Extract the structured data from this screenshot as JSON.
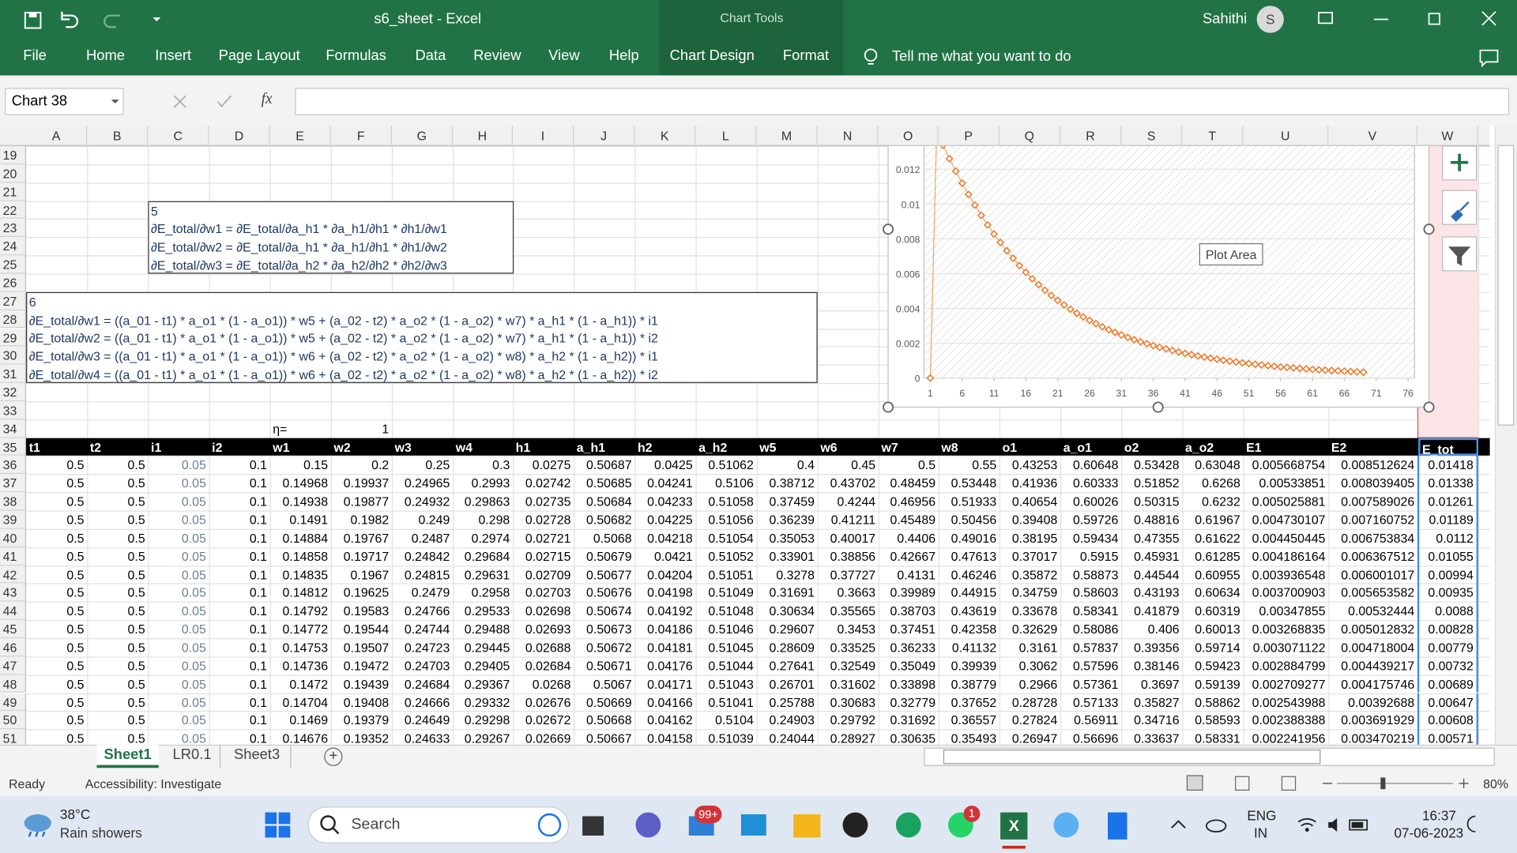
{
  "title_bar": {
    "file_title": "s6_sheet  -  Excel",
    "chart_tools": "Chart Tools",
    "user": "Sahithi",
    "avatar": "S"
  },
  "ribbon": {
    "tabs": [
      "File",
      "Home",
      "Insert",
      "Page Layout",
      "Formulas",
      "Data",
      "Review",
      "View",
      "Help",
      "Chart Design",
      "Format"
    ],
    "tell_me": "Tell me what you want to do"
  },
  "formula_bar": {
    "name_box": "Chart 38",
    "fx": "fx"
  },
  "columns": [
    "A",
    "B",
    "C",
    "D",
    "E",
    "F",
    "G",
    "H",
    "I",
    "J",
    "K",
    "L",
    "M",
    "N",
    "O",
    "P",
    "Q",
    "R",
    "S",
    "T",
    "U",
    "V",
    "W"
  ],
  "rows": [
    "19",
    "20",
    "21",
    "22",
    "23",
    "24",
    "25",
    "26",
    "27",
    "28",
    "29",
    "30",
    "31",
    "32",
    "33",
    "34",
    "35",
    "36",
    "37",
    "38",
    "39",
    "40",
    "41",
    "42",
    "43",
    "44",
    "45",
    "46",
    "47",
    "48",
    "49",
    "50",
    "51"
  ],
  "text_box_1": {
    "lines": [
      "5",
      "∂E_total/∂w1 = ∂E_total/∂a_h1 * ∂a_h1/∂h1 * ∂h1/∂w1",
      "∂E_total/∂w2 = ∂E_total/∂a_h1 * ∂a_h1/∂h1 * ∂h1/∂w2",
      "∂E_total/∂w3 = ∂E_total/∂a_h2 * ∂a_h2/∂h2 * ∂h2/∂w3"
    ]
  },
  "text_box_2": {
    "lines": [
      "6",
      "∂E_total/∂w1 = ((a_01 - t1) * a_o1 * (1 - a_o1)) * w5 +  (a_02 - t2) * a_o2 * (1 - a_o2) * w7) * a_h1 * (1 - a_h1)) * i1",
      "∂E_total/∂w2 = ((a_01 - t1) * a_o1 * (1 - a_o1)) * w5 +  (a_02 - t2) * a_o2 * (1 - a_o2) * w7) * a_h1 * (1 - a_h1)) * i2",
      "∂E_total/∂w3 = ((a_01 - t1) * a_o1 * (1 - a_o1)) * w6 +  (a_02 - t2) * a_o2 * (1 - a_o2) * w8) * a_h2 * (1 - a_h2)) * i1",
      "∂E_total/∂w4 = ((a_01 - t1) * a_o1 * (1 - a_o1)) * w6 +  (a_02 - t2) * a_o2 * (1 - a_o2) * w8) * a_h2 * (1 - a_h2)) * i2"
    ]
  },
  "eta": {
    "label": "η=",
    "value": "1"
  },
  "table": {
    "header": [
      "t1",
      "t2",
      "i1",
      "i2",
      "w1",
      "w2",
      "w3",
      "w4",
      "h1",
      "a_h1",
      "h2",
      "a_h2",
      "w5",
      "w6",
      "w7",
      "w8",
      "o1",
      "a_o1",
      "o2",
      "a_o2",
      "E1",
      "E2",
      "E_tot"
    ],
    "rows": [
      [
        "0.5",
        "0.5",
        "0.05",
        "0.1",
        "0.15",
        "0.2",
        "0.25",
        "0.3",
        "0.0275",
        "0.50687",
        "0.0425",
        "0.51062",
        "0.4",
        "0.45",
        "0.5",
        "0.55",
        "0.43253",
        "0.60648",
        "0.53428",
        "0.63048",
        "0.005668754",
        "0.008512624",
        "0.01418"
      ],
      [
        "0.5",
        "0.5",
        "0.05",
        "0.1",
        "0.14968",
        "0.19937",
        "0.24965",
        "0.2993",
        "0.02742",
        "0.50685",
        "0.04241",
        "0.5106",
        "0.38712",
        "0.43702",
        "0.48459",
        "0.53448",
        "0.41936",
        "0.60333",
        "0.51852",
        "0.6268",
        "0.00533851",
        "0.008039405",
        "0.01338"
      ],
      [
        "0.5",
        "0.5",
        "0.05",
        "0.1",
        "0.14938",
        "0.19877",
        "0.24932",
        "0.29863",
        "0.02735",
        "0.50684",
        "0.04233",
        "0.51058",
        "0.37459",
        "0.4244",
        "0.46956",
        "0.51933",
        "0.40654",
        "0.60026",
        "0.50315",
        "0.6232",
        "0.005025881",
        "0.007589026",
        "0.01261"
      ],
      [
        "0.5",
        "0.5",
        "0.05",
        "0.1",
        "0.1491",
        "0.1982",
        "0.249",
        "0.298",
        "0.02728",
        "0.50682",
        "0.04225",
        "0.51056",
        "0.36239",
        "0.41211",
        "0.45489",
        "0.50456",
        "0.39408",
        "0.59726",
        "0.48816",
        "0.61967",
        "0.004730107",
        "0.007160752",
        "0.01189"
      ],
      [
        "0.5",
        "0.5",
        "0.05",
        "0.1",
        "0.14884",
        "0.19767",
        "0.2487",
        "0.2974",
        "0.02721",
        "0.5068",
        "0.04218",
        "0.51054",
        "0.35053",
        "0.40017",
        "0.4406",
        "0.49016",
        "0.38195",
        "0.59434",
        "0.47355",
        "0.61622",
        "0.004450445",
        "0.006753834",
        "0.0112"
      ],
      [
        "0.5",
        "0.5",
        "0.05",
        "0.1",
        "0.14858",
        "0.19717",
        "0.24842",
        "0.29684",
        "0.02715",
        "0.50679",
        "0.0421",
        "0.51052",
        "0.33901",
        "0.38856",
        "0.42667",
        "0.47613",
        "0.37017",
        "0.5915",
        "0.45931",
        "0.61285",
        "0.004186164",
        "0.006367512",
        "0.01055"
      ],
      [
        "0.5",
        "0.5",
        "0.05",
        "0.1",
        "0.14835",
        "0.1967",
        "0.24815",
        "0.29631",
        "0.02709",
        "0.50677",
        "0.04204",
        "0.51051",
        "0.3278",
        "0.37727",
        "0.4131",
        "0.46246",
        "0.35872",
        "0.58873",
        "0.44544",
        "0.60955",
        "0.003936548",
        "0.006001017",
        "0.00994"
      ],
      [
        "0.5",
        "0.5",
        "0.05",
        "0.1",
        "0.14812",
        "0.19625",
        "0.2479",
        "0.2958",
        "0.02703",
        "0.50676",
        "0.04198",
        "0.51049",
        "0.31691",
        "0.3663",
        "0.39989",
        "0.44915",
        "0.34759",
        "0.58603",
        "0.43193",
        "0.60634",
        "0.003700903",
        "0.005653582",
        "0.00935"
      ],
      [
        "0.5",
        "0.5",
        "0.05",
        "0.1",
        "0.14792",
        "0.19583",
        "0.24766",
        "0.29533",
        "0.02698",
        "0.50674",
        "0.04192",
        "0.51048",
        "0.30634",
        "0.35565",
        "0.38703",
        "0.43619",
        "0.33678",
        "0.58341",
        "0.41879",
        "0.60319",
        "0.00347855",
        "0.00532444",
        "0.0088"
      ],
      [
        "0.5",
        "0.5",
        "0.05",
        "0.1",
        "0.14772",
        "0.19544",
        "0.24744",
        "0.29488",
        "0.02693",
        "0.50673",
        "0.04186",
        "0.51046",
        "0.29607",
        "0.3453",
        "0.37451",
        "0.42358",
        "0.32629",
        "0.58086",
        "0.406",
        "0.60013",
        "0.003268835",
        "0.005012832",
        "0.00828"
      ],
      [
        "0.5",
        "0.5",
        "0.05",
        "0.1",
        "0.14753",
        "0.19507",
        "0.24723",
        "0.29445",
        "0.02688",
        "0.50672",
        "0.04181",
        "0.51045",
        "0.28609",
        "0.33525",
        "0.36233",
        "0.41132",
        "0.3161",
        "0.57837",
        "0.39356",
        "0.59714",
        "0.003071122",
        "0.004718004",
        "0.00779"
      ],
      [
        "0.5",
        "0.5",
        "0.05",
        "0.1",
        "0.14736",
        "0.19472",
        "0.24703",
        "0.29405",
        "0.02684",
        "0.50671",
        "0.04176",
        "0.51044",
        "0.27641",
        "0.32549",
        "0.35049",
        "0.39939",
        "0.3062",
        "0.57596",
        "0.38146",
        "0.59423",
        "0.002884799",
        "0.004439217",
        "0.00732"
      ],
      [
        "0.5",
        "0.5",
        "0.05",
        "0.1",
        "0.1472",
        "0.19439",
        "0.24684",
        "0.29367",
        "0.0268",
        "0.5067",
        "0.04171",
        "0.51043",
        "0.26701",
        "0.31602",
        "0.33898",
        "0.38779",
        "0.2966",
        "0.57361",
        "0.3697",
        "0.59139",
        "0.002709277",
        "0.004175746",
        "0.00689"
      ],
      [
        "0.5",
        "0.5",
        "0.05",
        "0.1",
        "0.14704",
        "0.19408",
        "0.24666",
        "0.29332",
        "0.02676",
        "0.50669",
        "0.04166",
        "0.51041",
        "0.25788",
        "0.30683",
        "0.32779",
        "0.37652",
        "0.28728",
        "0.57133",
        "0.35827",
        "0.58862",
        "0.002543988",
        "0.00392688",
        "0.00647"
      ],
      [
        "0.5",
        "0.5",
        "0.05",
        "0.1",
        "0.1469",
        "0.19379",
        "0.24649",
        "0.29298",
        "0.02672",
        "0.50668",
        "0.04162",
        "0.5104",
        "0.24903",
        "0.29792",
        "0.31692",
        "0.36557",
        "0.27824",
        "0.56911",
        "0.34716",
        "0.58593",
        "0.002388388",
        "0.003691929",
        "0.00608"
      ],
      [
        "0.5",
        "0.5",
        "0.05",
        "0.1",
        "0.14676",
        "0.19352",
        "0.24633",
        "0.29267",
        "0.02669",
        "0.50667",
        "0.04158",
        "0.51039",
        "0.24044",
        "0.28927",
        "0.30635",
        "0.35493",
        "0.26947",
        "0.56696",
        "0.33637",
        "0.58331",
        "0.002241956",
        "0.003470219",
        "0.00571"
      ]
    ]
  },
  "chart_data": {
    "type": "line",
    "color": "#ed7d31",
    "x": [
      1,
      2,
      3,
      4,
      5,
      6,
      7,
      8,
      9,
      10,
      11,
      12,
      13,
      14,
      15,
      16,
      17,
      18,
      19,
      20,
      21,
      22,
      23,
      24,
      25,
      26,
      27,
      28,
      29,
      30,
      31,
      32,
      33,
      34,
      35,
      36,
      37,
      38,
      39,
      40,
      41,
      42,
      43,
      44,
      45,
      46,
      47,
      48,
      49,
      50,
      51,
      52,
      53,
      54,
      55,
      56,
      57,
      58,
      59,
      60,
      61,
      62,
      63,
      64,
      65,
      66,
      67,
      68,
      69
    ],
    "values": [
      0,
      0.01418,
      0.01338,
      0.01261,
      0.01189,
      0.0112,
      0.01055,
      0.00994,
      0.00935,
      0.0088,
      0.00828,
      0.00779,
      0.00732,
      0.00689,
      0.00647,
      0.00608,
      0.00571,
      0.00537,
      0.00505,
      0.00475,
      0.00447,
      0.00421,
      0.00396,
      0.00373,
      0.00352,
      0.00332,
      0.00313,
      0.00295,
      0.00278,
      0.00263,
      0.00248,
      0.00234,
      0.00221,
      0.00209,
      0.00198,
      0.00187,
      0.00177,
      0.00168,
      0.00159,
      0.0015,
      0.00142,
      0.00135,
      0.00128,
      0.00121,
      0.00115,
      0.00109,
      0.00103,
      0.00098,
      0.00093,
      0.00088,
      0.00084,
      0.0008,
      0.00076,
      0.00072,
      0.00068,
      0.00065,
      0.00062,
      0.00059,
      0.00056,
      0.00053,
      0.0005,
      0.00048,
      0.00046,
      0.00044,
      0.00042,
      0.0004,
      0.00038,
      0.00036,
      0.00034
    ],
    "xlim": [
      0,
      77
    ],
    "ylim": [
      0,
      0.016
    ],
    "xticks": [
      1,
      6,
      11,
      16,
      21,
      26,
      31,
      36,
      41,
      46,
      51,
      56,
      61,
      66,
      71,
      76
    ],
    "yticks": [
      0,
      0.002,
      0.004,
      0.006,
      0.008,
      0.01,
      0.012
    ],
    "plot_area_tip": "Plot Area"
  },
  "sheet_tabs": [
    "Sheet1",
    "LR0.1",
    "Sheet3"
  ],
  "status": {
    "ready": "Ready",
    "accessibility": "Accessibility: Investigate",
    "zoom": "80%"
  },
  "taskbar": {
    "temp": "38°C",
    "weather": "Rain showers",
    "search": "Search",
    "mail_badge": "99+",
    "whatsapp_badge": "1",
    "lang": "ENG",
    "region": "IN",
    "time": "16:37",
    "date": "07-06-2023"
  }
}
